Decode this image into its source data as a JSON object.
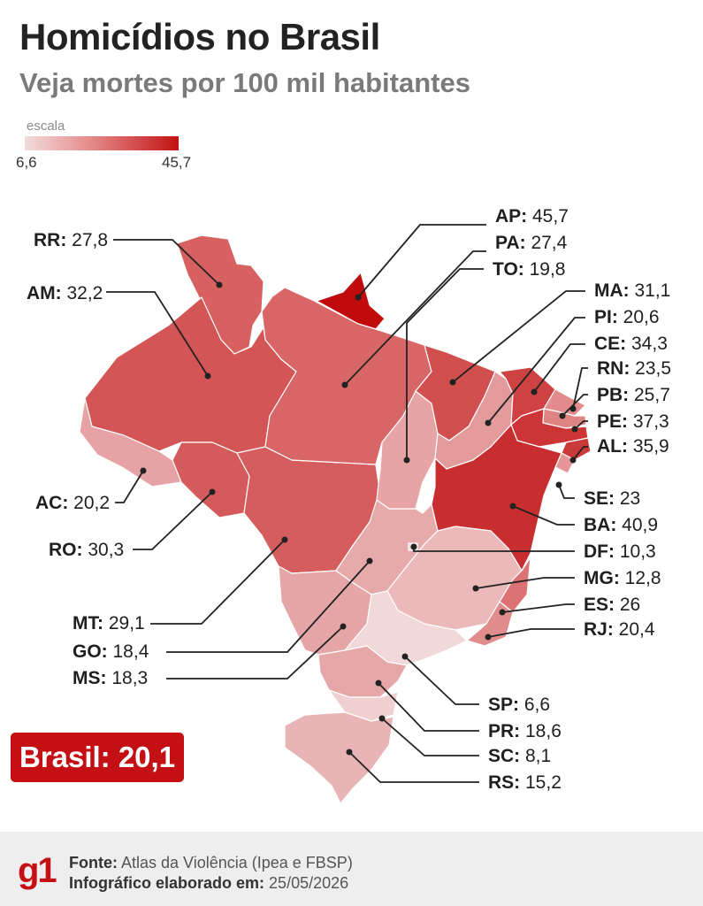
{
  "title": "Homicídios no Brasil",
  "subtitle": "Veja mortes por 100 mil habitantes",
  "scale": {
    "label": "escala",
    "min": "6,6",
    "max": "45,7"
  },
  "states": [
    {
      "code": "RR",
      "value": "27,8",
      "color": "#d76061"
    },
    {
      "code": "AM",
      "value": "32,2",
      "color": "#d35556"
    },
    {
      "code": "AC",
      "value": "20,2",
      "color": "#e6a2a4"
    },
    {
      "code": "RO",
      "value": "30,3",
      "color": "#d45a5b"
    },
    {
      "code": "MT",
      "value": "29,1",
      "color": "#d55d5e"
    },
    {
      "code": "GO",
      "value": "18,4",
      "color": "#e7aaab"
    },
    {
      "code": "MS",
      "value": "18,3",
      "color": "#e6a6a7"
    },
    {
      "code": "AP",
      "value": "45,7",
      "color": "#c10a0c"
    },
    {
      "code": "PA",
      "value": "27,4",
      "color": "#d96667"
    },
    {
      "code": "TO",
      "value": "19,8",
      "color": "#e6a4a5"
    },
    {
      "code": "MA",
      "value": "31,1",
      "color": "#d24f50"
    },
    {
      "code": "PI",
      "value": "20,6",
      "color": "#e29a9b"
    },
    {
      "code": "CE",
      "value": "34,3",
      "color": "#cf4243"
    },
    {
      "code": "RN",
      "value": "23,5",
      "color": "#e38c8d"
    },
    {
      "code": "PB",
      "value": "25,7",
      "color": "#df8485"
    },
    {
      "code": "PE",
      "value": "37,3",
      "color": "#cc3435"
    },
    {
      "code": "AL",
      "value": "35,9",
      "color": "#cb3a3b"
    },
    {
      "code": "SE",
      "value": "23",
      "color": "#e69697"
    },
    {
      "code": "BA",
      "value": "40,9",
      "color": "#c82e2f"
    },
    {
      "code": "DF",
      "value": "10,3",
      "color": "#f1d0d0"
    },
    {
      "code": "MG",
      "value": "12,8",
      "color": "#ebb9b9"
    },
    {
      "code": "ES",
      "value": "26",
      "color": "#dc7273"
    },
    {
      "code": "RJ",
      "value": "20,4",
      "color": "#e18d8e"
    },
    {
      "code": "SP",
      "value": "6,6",
      "color": "#f2d9d9"
    },
    {
      "code": "PR",
      "value": "18,6",
      "color": "#e6a7a8"
    },
    {
      "code": "SC",
      "value": "8,1",
      "color": "#efcfcf"
    },
    {
      "code": "RS",
      "value": "15,2",
      "color": "#e8b4b5"
    }
  ],
  "brasil": {
    "label": "Brasil:",
    "value": "20,1"
  },
  "footer": {
    "logo": "g1",
    "source_label": "Fonte:",
    "source_text": "Atlas da Violência (Ipea e FBSP)",
    "date_label": "Infográfico elaborado em:",
    "date_text": "25/05/2026"
  }
}
